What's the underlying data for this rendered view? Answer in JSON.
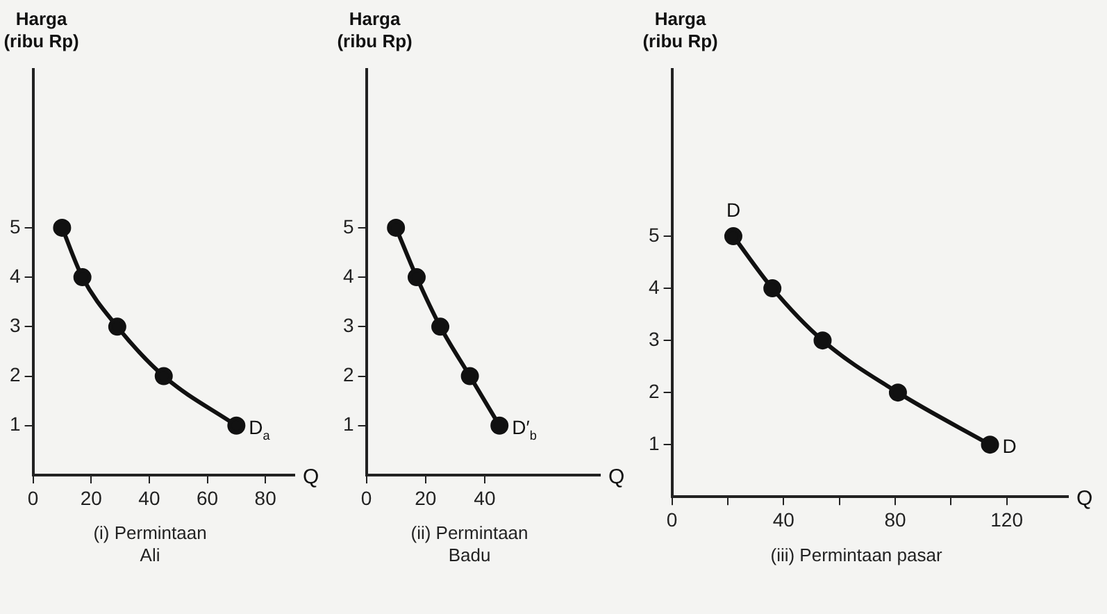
{
  "chart_data": [
    {
      "type": "line",
      "title": "(i) Permintaan\nAli",
      "xlabel": "Q",
      "ylabel": "Harga\n(ribu Rp)",
      "x": [
        10,
        17,
        29,
        45,
        70
      ],
      "series": [
        {
          "color": "#111111",
          "values": [
            5,
            4,
            3,
            2,
            1
          ]
        }
      ],
      "xlim": [
        0,
        90
      ],
      "xticks": [
        0,
        20,
        40,
        60,
        80
      ],
      "ylim": [
        0,
        8.2
      ],
      "yticks": [
        1,
        2,
        3,
        4,
        5
      ],
      "grid": false,
      "legend": false,
      "marker": "circle",
      "line_style": "solid",
      "annotations": [
        {
          "text": "D$_{a}$",
          "x": 70,
          "y": 1
        }
      ]
    },
    {
      "type": "line",
      "title": "(ii) Permintaan\nBadu",
      "xlabel": "Q",
      "ylabel": "Harga\n(ribu Rp)",
      "x": [
        10,
        17,
        25,
        35,
        45
      ],
      "series": [
        {
          "color": "#111111",
          "values": [
            5,
            4,
            3,
            2,
            1
          ]
        }
      ],
      "xlim": [
        0,
        79
      ],
      "xticks": [
        0,
        20,
        40
      ],
      "ylim": [
        0,
        8.2
      ],
      "yticks": [
        1,
        2,
        3,
        4,
        5
      ],
      "grid": false,
      "legend": false,
      "marker": "circle",
      "line_style": "solid",
      "annotations": [
        {
          "text": "D′$_{b}$",
          "x": 45,
          "y": 1
        }
      ]
    },
    {
      "type": "line",
      "title": "(iii) Permintaan pasar",
      "xlabel": "Q",
      "ylabel": "Harga\n(ribu Rp)",
      "x": [
        22,
        36,
        54,
        81,
        114
      ],
      "series": [
        {
          "color": "#111111",
          "values": [
            5,
            4,
            3,
            2,
            1
          ]
        }
      ],
      "xlim": [
        0,
        142
      ],
      "xticks": [
        0,
        {
          "value": 20,
          "label": null
        },
        40,
        {
          "value": 60,
          "label": null
        },
        80,
        {
          "value": 100,
          "label": null
        },
        120
      ],
      "ylim": [
        0,
        8.2
      ],
      "yticks": [
        1,
        2,
        3,
        4,
        5
      ],
      "grid": false,
      "legend": false,
      "marker": "circle",
      "line_style": "solid",
      "annotations": [
        {
          "text": "D",
          "x": 22,
          "y": 5
        },
        {
          "text": "D",
          "x": 114,
          "y": 1
        }
      ]
    }
  ]
}
